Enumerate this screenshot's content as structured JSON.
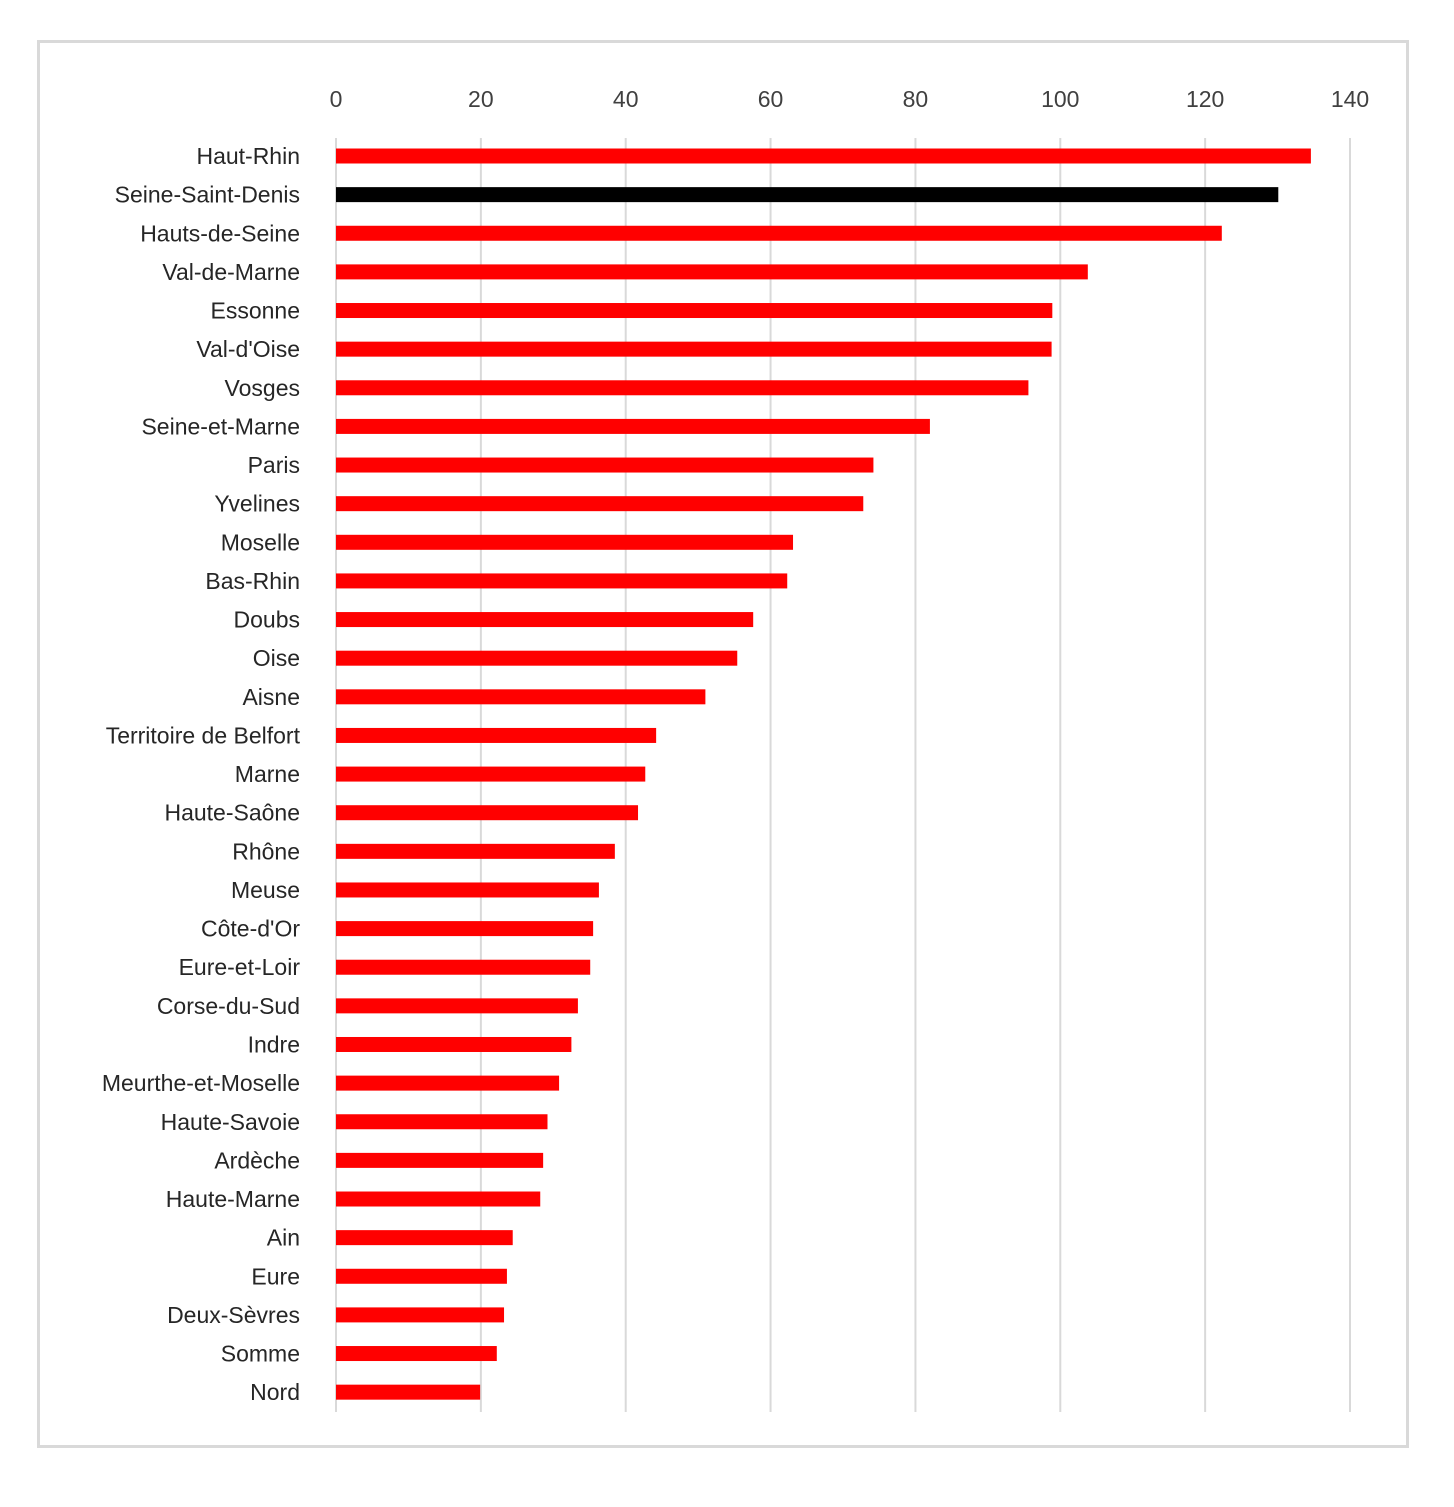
{
  "chart_data": {
    "type": "bar",
    "orientation": "horizontal",
    "x_axis_position": "top",
    "grid": true,
    "legend": "none",
    "xlim": [
      0,
      140
    ],
    "x_ticks": [
      0,
      20,
      40,
      60,
      80,
      100,
      120,
      140
    ],
    "x_tick_labels": [
      "0",
      "20",
      "40",
      "60",
      "80",
      "100",
      "120",
      "140"
    ],
    "colors": {
      "bar": "#ff0000",
      "highlight": "#000000",
      "grid": "#d9d9d9"
    },
    "highlight_category": "Seine-Saint-Denis",
    "categories": [
      "Haut-Rhin",
      "Seine-Saint-Denis",
      "Hauts-de-Seine",
      "Val-de-Marne",
      "Essonne",
      "Val-d'Oise",
      "Vosges",
      "Seine-et-Marne",
      "Paris",
      "Yvelines",
      "Moselle",
      "Bas-Rhin",
      "Doubs",
      "Oise",
      "Aisne",
      "Territoire de Belfort",
      "Marne",
      "Haute-Saône",
      "Rhône",
      "Meuse",
      "Côte-d'Or",
      "Eure-et-Loir",
      "Corse-du-Sud",
      "Indre",
      "Meurthe-et-Moselle",
      "Haute-Savoie",
      "Ardèche",
      "Haute-Marne",
      "Ain",
      "Eure",
      "Deux-Sèvres",
      "Somme",
      "Nord"
    ],
    "values": [
      134.6,
      130.1,
      122.3,
      103.8,
      98.9,
      98.8,
      95.6,
      82.0,
      74.2,
      72.8,
      63.1,
      62.3,
      57.6,
      55.4,
      51.0,
      44.2,
      42.7,
      41.7,
      38.5,
      36.3,
      35.5,
      35.1,
      33.4,
      32.5,
      30.8,
      29.2,
      28.6,
      28.2,
      24.4,
      23.6,
      23.2,
      22.2,
      19.9
    ]
  }
}
